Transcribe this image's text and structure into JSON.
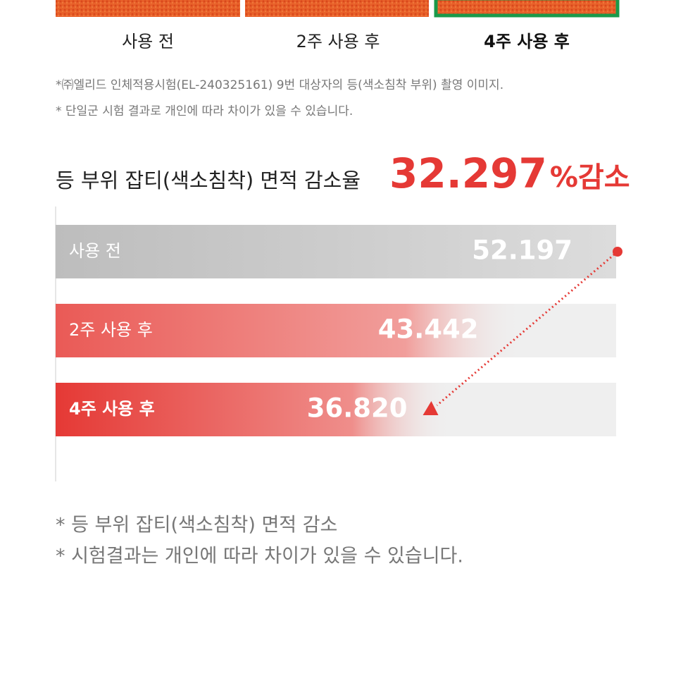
{
  "photo_labels": [
    "사용 전",
    "2주 사용 후",
    "4주 사용 후"
  ],
  "footnotes_top": [
    "*㈜엘리드 인체적용시험(EL-240325161) 9번 대상자의 등(색소침착 부위) 촬영 이미지.",
    "* 단일군 시험 결과로 개인에 따라 차이가 있을 수 있습니다."
  ],
  "chart_data": {
    "type": "bar",
    "orientation": "horizontal",
    "title": "등 부위 잡티(색소침착) 면적 감소율",
    "highlight": "32.297",
    "highlight_suffix": "%감소",
    "categories": [
      "사용 전",
      "2주 사용 후",
      "4주 사용 후"
    ],
    "values": [
      52.197,
      43.442,
      36.82
    ],
    "value_labels": [
      "52.197",
      "43.442",
      "36.820"
    ],
    "colors": [
      "#bdbdbd",
      "#ea5a56",
      "#e53935"
    ],
    "track_color": "#efefef",
    "arrow_color": "#e53935"
  },
  "footnotes_bottom": [
    "*  등 부위 잡티(색소침착) 면적 감소",
    "*  시험결과는 개인에 따라 차이가 있을 수 있습니다."
  ]
}
